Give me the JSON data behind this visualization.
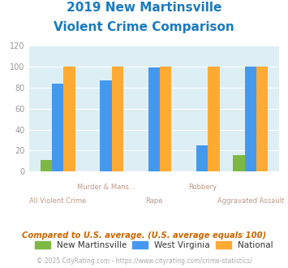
{
  "title_line1": "2019 New Martinsville",
  "title_line2": "Violent Crime Comparison",
  "title_color": "#1a7abf",
  "categories": [
    "All Violent Crime",
    "Murder & Mans...",
    "Rape",
    "Robbery",
    "Aggravated Assault"
  ],
  "top_labels": [
    "",
    "Murder & Mans...",
    "",
    "Robbery",
    ""
  ],
  "bottom_labels": [
    "All Violent Crime",
    "",
    "Rape",
    "",
    "Aggravated Assault"
  ],
  "new_martinsville": [
    11,
    0,
    0,
    0,
    16
  ],
  "west_virginia": [
    84,
    87,
    99,
    25,
    100
  ],
  "national": [
    100,
    100,
    100,
    100,
    100
  ],
  "nm_color": "#7db843",
  "wv_color": "#4499ee",
  "nat_color": "#ffaa33",
  "ylim": [
    0,
    120
  ],
  "yticks": [
    0,
    20,
    40,
    60,
    80,
    100,
    120
  ],
  "plot_bg": "#ddeef5",
  "footer_text": "Compared to U.S. average. (U.S. average equals 100)",
  "copyright_text": "© 2025 CityRating.com - https://www.cityrating.com/crime-statistics/",
  "legend_labels": [
    "New Martinsville",
    "West Virginia",
    "National"
  ]
}
